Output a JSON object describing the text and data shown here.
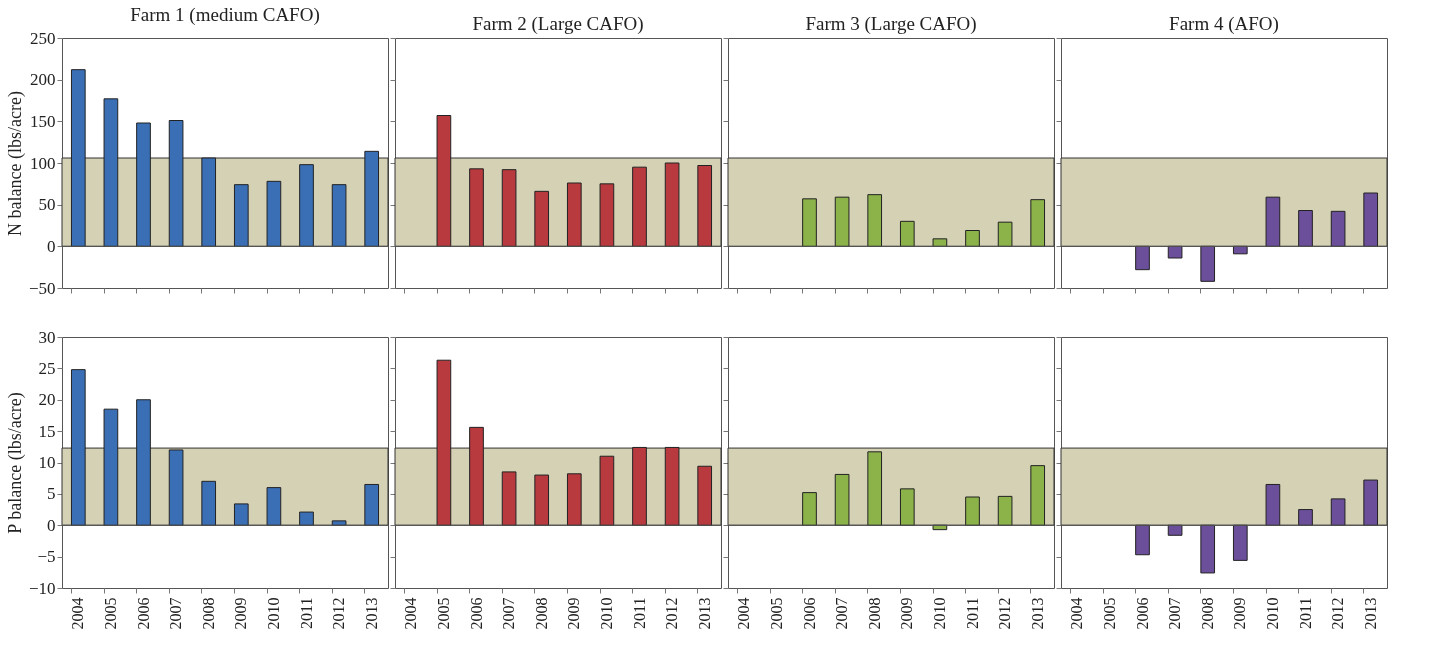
{
  "chart_data": [
    {
      "type": "bar",
      "title": "Farm 1 (medium CAFO)",
      "ylabel": "N balance (lbs/acre)",
      "categories": [
        "2004",
        "2005",
        "2006",
        "2007",
        "2008",
        "2009",
        "2010",
        "2011",
        "2012",
        "2013"
      ],
      "values": [
        212,
        177,
        148,
        151,
        106,
        74,
        78,
        98,
        74,
        114
      ],
      "color": "#3a6fb5",
      "ylim": [
        -50,
        250
      ],
      "yticks": [
        -50,
        0,
        50,
        100,
        150,
        200,
        250
      ],
      "bands": [
        {
          "axis": "y",
          "from": 0,
          "to": 106,
          "color": "#d5d1b5"
        }
      ],
      "ref_lines": [
        {
          "axis": "y",
          "value": 0,
          "color": "#555555"
        }
      ],
      "grid": false,
      "tick_labels": "y"
    },
    {
      "type": "bar",
      "title": "Farm 2 (Large CAFO)",
      "categories": [
        "2004",
        "2005",
        "2006",
        "2007",
        "2008",
        "2009",
        "2010",
        "2011",
        "2012",
        "2013"
      ],
      "values": [
        null,
        157,
        93,
        92,
        66,
        76,
        75,
        95,
        100,
        97
      ],
      "color": "#b83a3e",
      "ylim": [
        -50,
        250
      ],
      "yticks": [
        -50,
        0,
        50,
        100,
        150,
        200,
        250
      ],
      "bands": [
        {
          "axis": "y",
          "from": 0,
          "to": 106,
          "color": "#d5d1b5"
        }
      ],
      "ref_lines": [
        {
          "axis": "y",
          "value": 0,
          "color": "#555555"
        }
      ],
      "grid": false,
      "tick_labels": false
    },
    {
      "type": "bar",
      "title": "Farm 3 (Large CAFO)",
      "categories": [
        "2004",
        "2005",
        "2006",
        "2007",
        "2008",
        "2009",
        "2010",
        "2011",
        "2012",
        "2013"
      ],
      "values": [
        null,
        null,
        57,
        59,
        62,
        30,
        9,
        19,
        29,
        56
      ],
      "color": "#8cb24a",
      "ylim": [
        -50,
        250
      ],
      "yticks": [
        -50,
        0,
        50,
        100,
        150,
        200,
        250
      ],
      "bands": [
        {
          "axis": "y",
          "from": 0,
          "to": 106,
          "color": "#d5d1b5"
        }
      ],
      "ref_lines": [
        {
          "axis": "y",
          "value": 0,
          "color": "#555555"
        }
      ],
      "grid": false,
      "tick_labels": false
    },
    {
      "type": "bar",
      "title": "Farm 4 (AFO)",
      "categories": [
        "2004",
        "2005",
        "2006",
        "2007",
        "2008",
        "2009",
        "2010",
        "2011",
        "2012",
        "2013"
      ],
      "values": [
        null,
        null,
        -28,
        -14,
        -42,
        -9,
        59,
        43,
        42,
        64
      ],
      "color": "#6b4f9a",
      "ylim": [
        -50,
        250
      ],
      "yticks": [
        -50,
        0,
        50,
        100,
        150,
        200,
        250
      ],
      "bands": [
        {
          "axis": "y",
          "from": 0,
          "to": 106,
          "color": "#d5d1b5"
        }
      ],
      "ref_lines": [
        {
          "axis": "y",
          "value": 0,
          "color": "#555555"
        }
      ],
      "grid": false,
      "tick_labels": false
    },
    {
      "type": "bar",
      "ylabel": "P balance (lbs/acre)",
      "categories": [
        "2004",
        "2005",
        "2006",
        "2007",
        "2008",
        "2009",
        "2010",
        "2011",
        "2012",
        "2013"
      ],
      "values": [
        24.8,
        18.5,
        20,
        12,
        7,
        3.4,
        6,
        2.1,
        0.7,
        6.5
      ],
      "color": "#3a6fb5",
      "ylim": [
        -10,
        30
      ],
      "yticks": [
        -10,
        -5,
        0,
        5,
        10,
        15,
        20,
        25,
        30
      ],
      "bands": [
        {
          "axis": "y",
          "from": 0,
          "to": 12.3,
          "color": "#d5d1b5"
        }
      ],
      "ref_lines": [
        {
          "axis": "y",
          "value": 0,
          "color": "#555555"
        }
      ],
      "grid": false
    },
    {
      "type": "bar",
      "categories": [
        "2004",
        "2005",
        "2006",
        "2007",
        "2008",
        "2009",
        "2010",
        "2011",
        "2012",
        "2013"
      ],
      "values": [
        null,
        26.3,
        15.6,
        8.5,
        8,
        8.2,
        11,
        12.4,
        12.4,
        9.4
      ],
      "color": "#b83a3e",
      "ylim": [
        -10,
        30
      ],
      "yticks": [
        -10,
        -5,
        0,
        5,
        10,
        15,
        20,
        25,
        30
      ],
      "bands": [
        {
          "axis": "y",
          "from": 0,
          "to": 12.3,
          "color": "#d5d1b5"
        }
      ],
      "ref_lines": [
        {
          "axis": "y",
          "value": 0,
          "color": "#555555"
        }
      ],
      "grid": false,
      "tick_labels": "x"
    },
    {
      "type": "bar",
      "categories": [
        "2004",
        "2005",
        "2006",
        "2007",
        "2008",
        "2009",
        "2010",
        "2011",
        "2012",
        "2013"
      ],
      "values": [
        null,
        null,
        5.2,
        8.1,
        11.7,
        5.8,
        -0.7,
        4.5,
        4.6,
        9.5
      ],
      "color": "#8cb24a",
      "ylim": [
        -10,
        30
      ],
      "yticks": [
        -10,
        -5,
        0,
        5,
        10,
        15,
        20,
        25,
        30
      ],
      "bands": [
        {
          "axis": "y",
          "from": 0,
          "to": 12.3,
          "color": "#d5d1b5"
        }
      ],
      "ref_lines": [
        {
          "axis": "y",
          "value": 0,
          "color": "#555555"
        }
      ],
      "grid": false,
      "tick_labels": "x"
    },
    {
      "type": "bar",
      "categories": [
        "2004",
        "2005",
        "2006",
        "2007",
        "2008",
        "2009",
        "2010",
        "2011",
        "2012",
        "2013"
      ],
      "values": [
        null,
        null,
        -4.7,
        -1.6,
        -7.6,
        -5.6,
        6.5,
        2.5,
        4.2,
        7.2
      ],
      "color": "#6b4f9a",
      "ylim": [
        -10,
        30
      ],
      "yticks": [
        -10,
        -5,
        0,
        5,
        10,
        15,
        20,
        25,
        30
      ],
      "bands": [
        {
          "axis": "y",
          "from": 0,
          "to": 12.3,
          "color": "#d5d1b5"
        }
      ],
      "ref_lines": [
        {
          "axis": "y",
          "value": 0,
          "color": "#555555"
        }
      ],
      "grid": false,
      "tick_labels": "x"
    }
  ]
}
